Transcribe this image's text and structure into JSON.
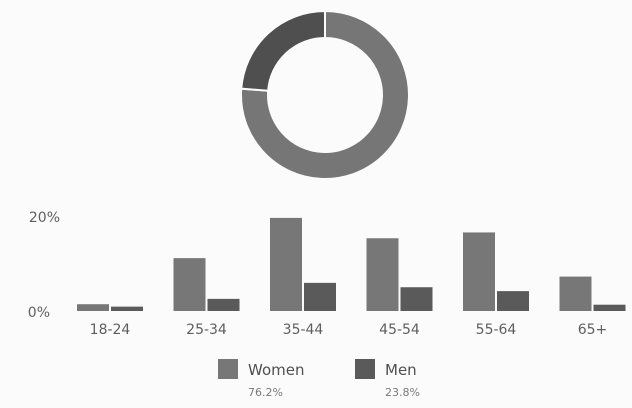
{
  "chart_data": [
    {
      "type": "pie",
      "slices": [
        {
          "label": "Women",
          "value": 76.2
        },
        {
          "label": "Men",
          "value": 23.8
        }
      ]
    },
    {
      "type": "bar",
      "categories": [
        "18-24",
        "25-34",
        "35-44",
        "45-54",
        "55-64",
        "65+"
      ],
      "series": [
        {
          "name": "Women",
          "values": [
            1.4,
            10.9,
            19.2,
            15.0,
            16.2,
            7.1
          ]
        },
        {
          "name": "Men",
          "values": [
            0.9,
            2.5,
            5.8,
            4.9,
            4.1,
            1.3
          ]
        }
      ],
      "ylim": [
        0,
        20
      ],
      "yticks": [
        "0%",
        "20%"
      ],
      "grid": false,
      "legend_position": "bottom"
    }
  ],
  "legend": [
    {
      "name": "Women",
      "pct": "76.2%",
      "color": "#777777"
    },
    {
      "name": "Men",
      "pct": "23.8%",
      "color": "#5a5a5a"
    }
  ],
  "colors": {
    "women": "#777777",
    "men": "#5a5a5a",
    "donut_women": "#767676",
    "donut_men": "#4f4f4f"
  }
}
